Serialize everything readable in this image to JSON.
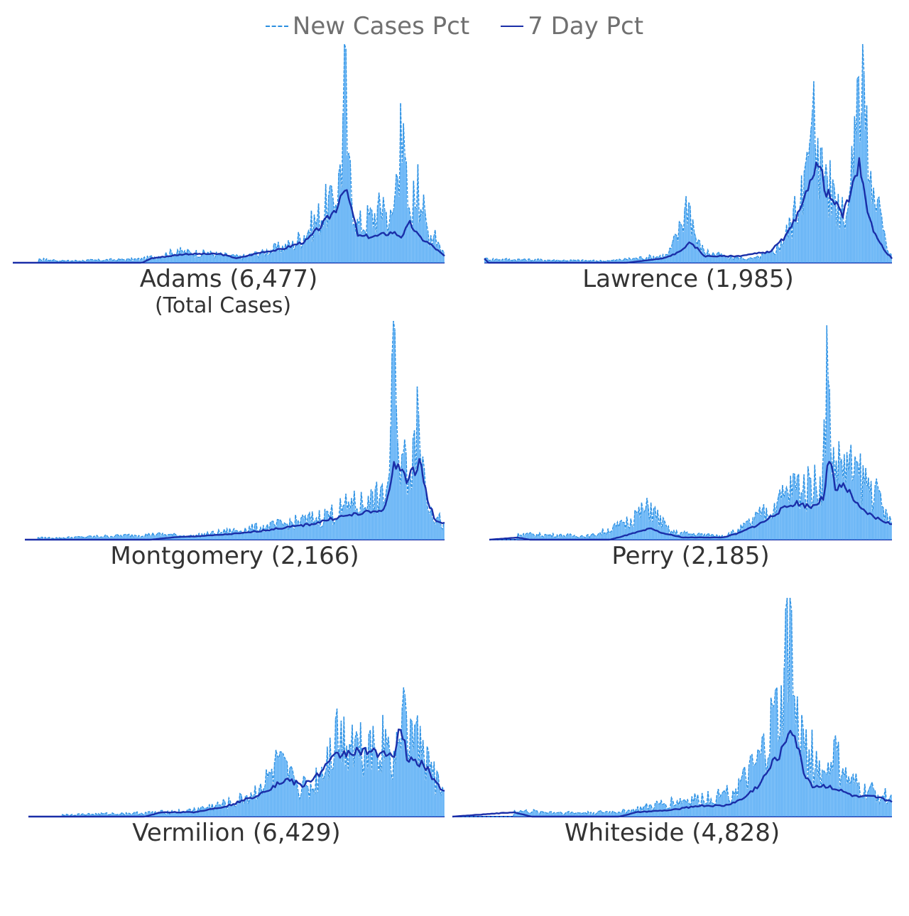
{
  "legend": {
    "new_cases_label": "New Cases Pct",
    "seven_day_label": "7 Day Pct"
  },
  "colors": {
    "bars": "#5aaef5",
    "new_cases_line": "#2b8fe0",
    "seven_day_line": "#1a2ea8",
    "text": "#333333"
  },
  "subtitle": "(Total Cases)",
  "chart_data": [
    {
      "type": "area",
      "title": "Adams (6,477)",
      "grid": false,
      "series": [
        {
          "name": "New Cases Pct",
          "peaks": [
            [
              0.06,
              0.02
            ],
            [
              0.12,
              0.01
            ],
            [
              0.3,
              0.02
            ],
            [
              0.38,
              0.06
            ],
            [
              0.45,
              0.05
            ],
            [
              0.53,
              0.03
            ],
            [
              0.58,
              0.06
            ],
            [
              0.65,
              0.1
            ],
            [
              0.7,
              0.22
            ],
            [
              0.74,
              0.35
            ],
            [
              0.76,
              0.45
            ],
            [
              0.77,
              1.0
            ],
            [
              0.78,
              0.5
            ],
            [
              0.8,
              0.2
            ],
            [
              0.83,
              0.25
            ],
            [
              0.86,
              0.3
            ],
            [
              0.88,
              0.22
            ],
            [
              0.9,
              0.73
            ],
            [
              0.92,
              0.25
            ],
            [
              0.94,
              0.45
            ],
            [
              0.96,
              0.18
            ],
            [
              0.98,
              0.15
            ],
            [
              1.0,
              0.05
            ]
          ]
        },
        {
          "name": "7 Day Pct",
          "peaks": [
            [
              0.0,
              0.0
            ],
            [
              0.3,
              0.0
            ],
            [
              0.32,
              0.02
            ],
            [
              0.4,
              0.04
            ],
            [
              0.48,
              0.04
            ],
            [
              0.52,
              0.02
            ],
            [
              0.58,
              0.05
            ],
            [
              0.62,
              0.06
            ],
            [
              0.68,
              0.1
            ],
            [
              0.72,
              0.18
            ],
            [
              0.75,
              0.25
            ],
            [
              0.765,
              0.35
            ],
            [
              0.78,
              0.28
            ],
            [
              0.8,
              0.12
            ],
            [
              0.84,
              0.12
            ],
            [
              0.88,
              0.14
            ],
            [
              0.9,
              0.12
            ],
            [
              0.92,
              0.18
            ],
            [
              0.94,
              0.12
            ],
            [
              0.97,
              0.08
            ],
            [
              1.0,
              0.03
            ]
          ]
        }
      ]
    },
    {
      "type": "area",
      "title": "Lawrence (1,985)",
      "grid": false,
      "series": [
        {
          "name": "New Cases Pct",
          "peaks": [
            [
              0.0,
              0.02
            ],
            [
              0.3,
              0.01
            ],
            [
              0.45,
              0.04
            ],
            [
              0.48,
              0.18
            ],
            [
              0.5,
              0.36
            ],
            [
              0.52,
              0.12
            ],
            [
              0.54,
              0.06
            ],
            [
              0.6,
              0.03
            ],
            [
              0.66,
              0.02
            ],
            [
              0.7,
              0.05
            ],
            [
              0.73,
              0.1
            ],
            [
              0.76,
              0.25
            ],
            [
              0.78,
              0.4
            ],
            [
              0.8,
              0.55
            ],
            [
              0.81,
              0.83
            ],
            [
              0.82,
              0.57
            ],
            [
              0.84,
              0.45
            ],
            [
              0.86,
              0.35
            ],
            [
              0.88,
              0.3
            ],
            [
              0.9,
              0.35
            ],
            [
              0.91,
              0.67
            ],
            [
              0.92,
              0.85
            ],
            [
              0.93,
              1.0
            ],
            [
              0.94,
              0.72
            ],
            [
              0.95,
              0.42
            ],
            [
              0.97,
              0.3
            ],
            [
              0.98,
              0.15
            ],
            [
              1.0,
              0.04
            ]
          ]
        },
        {
          "name": "7 Day Pct",
          "peaks": [
            [
              0.0,
              0.02
            ],
            [
              0.01,
              0.0
            ],
            [
              0.35,
              0.0
            ],
            [
              0.44,
              0.02
            ],
            [
              0.48,
              0.05
            ],
            [
              0.5,
              0.09
            ],
            [
              0.52,
              0.07
            ],
            [
              0.54,
              0.03
            ],
            [
              0.62,
              0.03
            ],
            [
              0.7,
              0.05
            ],
            [
              0.74,
              0.12
            ],
            [
              0.78,
              0.25
            ],
            [
              0.8,
              0.4
            ],
            [
              0.82,
              0.45
            ],
            [
              0.84,
              0.32
            ],
            [
              0.86,
              0.27
            ],
            [
              0.88,
              0.22
            ],
            [
              0.9,
              0.32
            ],
            [
              0.92,
              0.45
            ],
            [
              0.93,
              0.38
            ],
            [
              0.94,
              0.22
            ],
            [
              0.96,
              0.13
            ],
            [
              0.98,
              0.06
            ],
            [
              1.0,
              0.02
            ]
          ]
        }
      ]
    },
    {
      "type": "area",
      "title": "Montgomery (2,166)",
      "grid": false,
      "series": [
        {
          "name": "New Cases Pct",
          "peaks": [
            [
              0.03,
              0.01
            ],
            [
              0.08,
              0.01
            ],
            [
              0.32,
              0.03
            ],
            [
              0.4,
              0.02
            ],
            [
              0.5,
              0.05
            ],
            [
              0.58,
              0.07
            ],
            [
              0.66,
              0.1
            ],
            [
              0.72,
              0.13
            ],
            [
              0.78,
              0.19
            ],
            [
              0.82,
              0.2
            ],
            [
              0.85,
              0.24
            ],
            [
              0.87,
              0.3
            ],
            [
              0.88,
              1.0
            ],
            [
              0.89,
              0.45
            ],
            [
              0.91,
              0.4
            ],
            [
              0.93,
              0.5
            ],
            [
              0.935,
              0.7
            ],
            [
              0.95,
              0.38
            ],
            [
              0.97,
              0.15
            ],
            [
              1.0,
              0.08
            ]
          ]
        },
        {
          "name": "7 Day Pct",
          "peaks": [
            [
              0.0,
              0.0
            ],
            [
              0.3,
              0.0
            ],
            [
              0.35,
              0.01
            ],
            [
              0.45,
              0.02
            ],
            [
              0.52,
              0.03
            ],
            [
              0.6,
              0.05
            ],
            [
              0.68,
              0.07
            ],
            [
              0.74,
              0.1
            ],
            [
              0.8,
              0.12
            ],
            [
              0.84,
              0.13
            ],
            [
              0.86,
              0.15
            ],
            [
              0.88,
              0.34
            ],
            [
              0.9,
              0.34
            ],
            [
              0.91,
              0.25
            ],
            [
              0.92,
              0.3
            ],
            [
              0.93,
              0.32
            ],
            [
              0.94,
              0.37
            ],
            [
              0.96,
              0.18
            ],
            [
              0.98,
              0.08
            ],
            [
              1.0,
              0.08
            ]
          ]
        }
      ]
    },
    {
      "type": "area",
      "title": "Perry (2,185)",
      "grid": false,
      "series": [
        {
          "name": "New Cases Pct",
          "peaks": [
            [
              0.07,
              0.03
            ],
            [
              0.25,
              0.02
            ],
            [
              0.33,
              0.08
            ],
            [
              0.37,
              0.15
            ],
            [
              0.4,
              0.17
            ],
            [
              0.45,
              0.04
            ],
            [
              0.58,
              0.02
            ],
            [
              0.62,
              0.05
            ],
            [
              0.68,
              0.14
            ],
            [
              0.72,
              0.2
            ],
            [
              0.76,
              0.3
            ],
            [
              0.8,
              0.28
            ],
            [
              0.83,
              0.35
            ],
            [
              0.84,
              0.98
            ],
            [
              0.85,
              0.4
            ],
            [
              0.87,
              0.45
            ],
            [
              0.89,
              0.4
            ],
            [
              0.91,
              0.38
            ],
            [
              0.93,
              0.34
            ],
            [
              0.96,
              0.25
            ],
            [
              1.0,
              0.08
            ]
          ]
        },
        {
          "name": "7 Day Pct",
          "peaks": [
            [
              0.0,
              0.0
            ],
            [
              0.07,
              0.01
            ],
            [
              0.1,
              0.0
            ],
            [
              0.3,
              0.0
            ],
            [
              0.36,
              0.03
            ],
            [
              0.4,
              0.05
            ],
            [
              0.43,
              0.03
            ],
            [
              0.48,
              0.01
            ],
            [
              0.58,
              0.01
            ],
            [
              0.62,
              0.03
            ],
            [
              0.68,
              0.08
            ],
            [
              0.72,
              0.13
            ],
            [
              0.76,
              0.17
            ],
            [
              0.8,
              0.15
            ],
            [
              0.83,
              0.19
            ],
            [
              0.84,
              0.34
            ],
            [
              0.85,
              0.33
            ],
            [
              0.86,
              0.22
            ],
            [
              0.88,
              0.25
            ],
            [
              0.9,
              0.2
            ],
            [
              0.92,
              0.14
            ],
            [
              0.96,
              0.1
            ],
            [
              1.0,
              0.07
            ]
          ]
        }
      ]
    },
    {
      "type": "area",
      "title": "Vermilion (6,429)",
      "grid": false,
      "series": [
        {
          "name": "New Cases Pct",
          "peaks": [
            [
              0.08,
              0.01
            ],
            [
              0.28,
              0.02
            ],
            [
              0.38,
              0.03
            ],
            [
              0.5,
              0.08
            ],
            [
              0.56,
              0.15
            ],
            [
              0.6,
              0.28
            ],
            [
              0.64,
              0.18
            ],
            [
              0.68,
              0.15
            ],
            [
              0.72,
              0.32
            ],
            [
              0.74,
              0.45
            ],
            [
              0.78,
              0.42
            ],
            [
              0.82,
              0.38
            ],
            [
              0.86,
              0.4
            ],
            [
              0.88,
              0.3
            ],
            [
              0.9,
              0.5
            ],
            [
              0.91,
              0.48
            ],
            [
              0.93,
              0.42
            ],
            [
              0.95,
              0.35
            ],
            [
              0.97,
              0.25
            ],
            [
              1.0,
              0.12
            ]
          ]
        },
        {
          "name": "7 Day Pct",
          "peaks": [
            [
              0.0,
              0.0
            ],
            [
              0.28,
              0.0
            ],
            [
              0.32,
              0.02
            ],
            [
              0.4,
              0.02
            ],
            [
              0.48,
              0.05
            ],
            [
              0.54,
              0.09
            ],
            [
              0.58,
              0.13
            ],
            [
              0.62,
              0.17
            ],
            [
              0.66,
              0.14
            ],
            [
              0.7,
              0.2
            ],
            [
              0.74,
              0.28
            ],
            [
              0.78,
              0.3
            ],
            [
              0.82,
              0.29
            ],
            [
              0.86,
              0.3
            ],
            [
              0.88,
              0.27
            ],
            [
              0.89,
              0.38
            ],
            [
              0.9,
              0.38
            ],
            [
              0.91,
              0.26
            ],
            [
              0.93,
              0.25
            ],
            [
              0.95,
              0.24
            ],
            [
              0.97,
              0.18
            ],
            [
              1.0,
              0.11
            ]
          ]
        }
      ]
    },
    {
      "type": "area",
      "title": "Whiteside (4,828)",
      "grid": false,
      "series": [
        {
          "name": "New Cases Pct",
          "peaks": [
            [
              0.14,
              0.03
            ],
            [
              0.3,
              0.02
            ],
            [
              0.4,
              0.03
            ],
            [
              0.5,
              0.08
            ],
            [
              0.56,
              0.1
            ],
            [
              0.62,
              0.12
            ],
            [
              0.66,
              0.18
            ],
            [
              0.7,
              0.3
            ],
            [
              0.73,
              0.5
            ],
            [
              0.75,
              0.6
            ],
            [
              0.76,
              0.95
            ],
            [
              0.77,
              1.0
            ],
            [
              0.78,
              0.55
            ],
            [
              0.8,
              0.4
            ],
            [
              0.83,
              0.3
            ],
            [
              0.85,
              0.2
            ],
            [
              0.87,
              0.35
            ],
            [
              0.89,
              0.22
            ],
            [
              0.91,
              0.18
            ],
            [
              0.94,
              0.15
            ],
            [
              1.0,
              0.1
            ]
          ]
        },
        {
          "name": "7 Day Pct",
          "peaks": [
            [
              0.0,
              0.0
            ],
            [
              0.14,
              0.02
            ],
            [
              0.18,
              0.0
            ],
            [
              0.38,
              0.0
            ],
            [
              0.42,
              0.02
            ],
            [
              0.5,
              0.03
            ],
            [
              0.56,
              0.05
            ],
            [
              0.62,
              0.05
            ],
            [
              0.66,
              0.08
            ],
            [
              0.7,
              0.15
            ],
            [
              0.73,
              0.25
            ],
            [
              0.75,
              0.3
            ],
            [
              0.77,
              0.42
            ],
            [
              0.78,
              0.36
            ],
            [
              0.8,
              0.2
            ],
            [
              0.82,
              0.14
            ],
            [
              0.86,
              0.14
            ],
            [
              0.88,
              0.12
            ],
            [
              0.92,
              0.09
            ],
            [
              0.96,
              0.09
            ],
            [
              1.0,
              0.07
            ]
          ]
        }
      ]
    }
  ]
}
